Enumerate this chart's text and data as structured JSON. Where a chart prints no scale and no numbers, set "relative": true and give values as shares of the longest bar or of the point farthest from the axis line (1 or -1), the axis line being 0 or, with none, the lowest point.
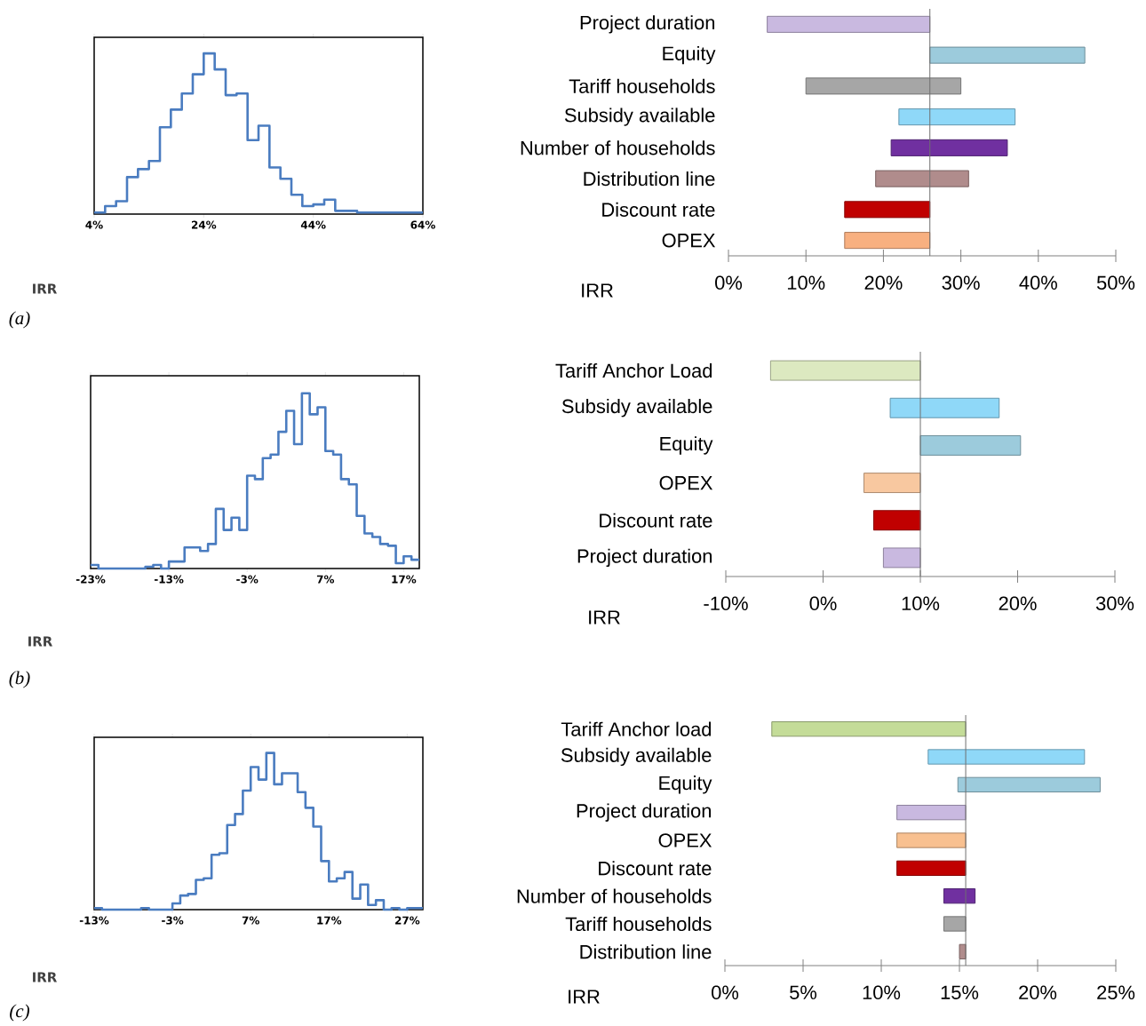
{
  "chart_data": [
    {
      "type": "step",
      "relative": true,
      "color": "#4a7cc0",
      "xlabel": "IRR",
      "annotations": [
        "(a)"
      ],
      "xlim": [
        4,
        64
      ],
      "xticks": [
        {
          "value": 4,
          "label": "4%"
        },
        {
          "value": 24,
          "label": "24%"
        },
        {
          "value": 44,
          "label": "44%"
        },
        {
          "value": 64,
          "label": "64%"
        }
      ],
      "x": [
        4,
        6,
        8,
        10,
        12,
        14,
        16,
        18,
        20,
        22,
        24,
        26,
        28,
        30,
        32,
        34,
        36,
        38,
        40,
        42,
        44,
        46,
        48,
        50,
        52,
        54,
        56,
        58,
        60,
        62,
        64
      ],
      "values": [
        0.01,
        0.05,
        0.08,
        0.23,
        0.28,
        0.33,
        0.54,
        0.65,
        0.75,
        0.87,
        1.0,
        0.9,
        0.74,
        0.75,
        0.46,
        0.55,
        0.29,
        0.22,
        0.12,
        0.05,
        0.06,
        0.09,
        0.02,
        0.02,
        0.01,
        0.01,
        0.01,
        0.01,
        0.01,
        0.01,
        0.01
      ]
    },
    {
      "type": "bar",
      "orientation": "horizontal",
      "xlabel": "IRR",
      "xlim": [
        0,
        50
      ],
      "xticks": [
        {
          "value": 0,
          "label": "0%"
        },
        {
          "value": 10,
          "label": "10%"
        },
        {
          "value": 20,
          "label": "20%"
        },
        {
          "value": 30,
          "label": "30%"
        },
        {
          "value": 40,
          "label": "40%"
        },
        {
          "value": 50,
          "label": "50%"
        }
      ],
      "categories": [
        "Project duration",
        "Equity",
        "Tariff households",
        "Subsidy available",
        "Number of households",
        "Distribution line",
        "Discount rate",
        "OPEX"
      ],
      "base": [
        5,
        26,
        10,
        22,
        21,
        19,
        15,
        15
      ],
      "values": [
        21,
        20,
        20,
        15,
        15,
        12,
        11,
        11
      ],
      "colors": [
        "#c9b9e0",
        "#9ccbdc",
        "#a6a6a6",
        "#8fd8f8",
        "#7030a0",
        "#b08c8c",
        "#c00000",
        "#f8b080"
      ],
      "ref_lines": [
        {
          "axis": "x",
          "value": 26,
          "color": "#707070"
        }
      ]
    },
    {
      "type": "step",
      "relative": true,
      "color": "#4a7cc0",
      "xlabel": "IRR",
      "annotations": [
        "(b)"
      ],
      "xlim": [
        -23,
        19
      ],
      "xticks": [
        {
          "value": -23,
          "label": "-23%"
        },
        {
          "value": -13,
          "label": "-13%"
        },
        {
          "value": -3,
          "label": "-3%"
        },
        {
          "value": 7,
          "label": "7%"
        },
        {
          "value": 17,
          "label": "17%"
        }
      ],
      "x": [
        -23,
        -22,
        -21,
        -20,
        -19,
        -18,
        -17,
        -16,
        -15,
        -14,
        -13,
        -12,
        -11,
        -10,
        -9,
        -8,
        -7,
        -6,
        -5,
        -4,
        -3,
        -2,
        -1,
        0,
        1,
        2,
        3,
        4,
        5,
        6,
        7,
        8,
        9,
        10,
        11,
        12,
        13,
        14,
        15,
        16,
        17,
        18,
        19
      ],
      "values": [
        0.02,
        0,
        0,
        0,
        0,
        0,
        0,
        0.01,
        0.02,
        0,
        0.04,
        0.04,
        0.12,
        0.12,
        0.1,
        0.14,
        0.34,
        0.22,
        0.29,
        0.22,
        0.53,
        0.51,
        0.63,
        0.65,
        0.78,
        0.9,
        0.71,
        1.0,
        0.88,
        0.92,
        0.67,
        0.65,
        0.51,
        0.48,
        0.3,
        0.2,
        0.18,
        0.14,
        0.13,
        0.03,
        0.07,
        0.05,
        0.05
      ]
    },
    {
      "type": "bar",
      "orientation": "horizontal",
      "xlabel": "IRR",
      "xlim": [
        -10,
        30
      ],
      "xticks": [
        {
          "value": -10,
          "label": "-10%"
        },
        {
          "value": 0,
          "label": "0%"
        },
        {
          "value": 10,
          "label": "10%"
        },
        {
          "value": 20,
          "label": "20%"
        },
        {
          "value": 30,
          "label": "30%"
        }
      ],
      "categories": [
        "Tariff Anchor Load",
        "Subsidy available",
        "Equity",
        "OPEX",
        "Discount rate",
        "Project duration"
      ],
      "base": [
        -5.4,
        6.9,
        10,
        4.2,
        5.2,
        6.2
      ],
      "values": [
        15.4,
        11.2,
        10.3,
        5.8,
        4.8,
        3.8
      ],
      "colors": [
        "#dce9c0",
        "#8fd8f8",
        "#9ccbdc",
        "#f8c8a0",
        "#c00000",
        "#c9b9e0"
      ],
      "ref_lines": [
        {
          "axis": "x",
          "value": 10,
          "color": "#707070"
        }
      ]
    },
    {
      "type": "step",
      "relative": true,
      "color": "#4a7cc0",
      "xlabel": "IRR",
      "annotations": [
        "(c)"
      ],
      "xlim": [
        -13,
        29
      ],
      "xticks": [
        {
          "value": -13,
          "label": "-13%"
        },
        {
          "value": -3,
          "label": "-3%"
        },
        {
          "value": 7,
          "label": "7%"
        },
        {
          "value": 17,
          "label": "17%"
        },
        {
          "value": 27,
          "label": "27%"
        }
      ],
      "x": [
        -13,
        -12,
        -11,
        -10,
        -9,
        -8,
        -7,
        -6,
        -5,
        -4,
        -3,
        -2,
        -1,
        0,
        1,
        2,
        3,
        4,
        5,
        6,
        7,
        8,
        9,
        10,
        11,
        12,
        13,
        14,
        15,
        16,
        17,
        18,
        19,
        20,
        21,
        22,
        23,
        24,
        25,
        26,
        27,
        28,
        29
      ],
      "values": [
        0.01,
        0,
        0,
        0,
        0,
        0,
        0.01,
        0,
        0,
        0,
        0.04,
        0.09,
        0.1,
        0.19,
        0.2,
        0.35,
        0.36,
        0.54,
        0.61,
        0.76,
        0.91,
        0.83,
        1.0,
        0.8,
        0.87,
        0.87,
        0.75,
        0.65,
        0.53,
        0.31,
        0.18,
        0.2,
        0.24,
        0.07,
        0.16,
        0.03,
        0.06,
        0,
        0.01,
        0,
        0.01,
        0.01,
        0.01
      ]
    },
    {
      "type": "bar",
      "orientation": "horizontal",
      "xlabel": "IRR",
      "xlim": [
        0,
        25
      ],
      "xticks": [
        {
          "value": 0,
          "label": "0%"
        },
        {
          "value": 5,
          "label": "5%"
        },
        {
          "value": 10,
          "label": "10%"
        },
        {
          "value": 15,
          "label": "15%"
        },
        {
          "value": 20,
          "label": "20%"
        },
        {
          "value": 25,
          "label": "25%"
        }
      ],
      "categories": [
        "Tariff Anchor load",
        "Subsidy available",
        "Equity",
        "Project duration",
        "OPEX",
        "Discount rate",
        "Number of households",
        "Tariff households",
        "Distribution line"
      ],
      "base": [
        3,
        13,
        14.9,
        11,
        11,
        11,
        14,
        14,
        15
      ],
      "values": [
        12.4,
        10,
        9.1,
        4.4,
        4.4,
        4.4,
        2,
        1.4,
        0.4
      ],
      "colors": [
        "#c4dc98",
        "#8fd8f8",
        "#9ccbdc",
        "#c9b9e0",
        "#f8c090",
        "#c00000",
        "#7030a0",
        "#a6a6a6",
        "#b08c8c"
      ],
      "ref_lines": [
        {
          "axis": "x",
          "value": 15.4,
          "color": "#707070"
        }
      ]
    }
  ]
}
